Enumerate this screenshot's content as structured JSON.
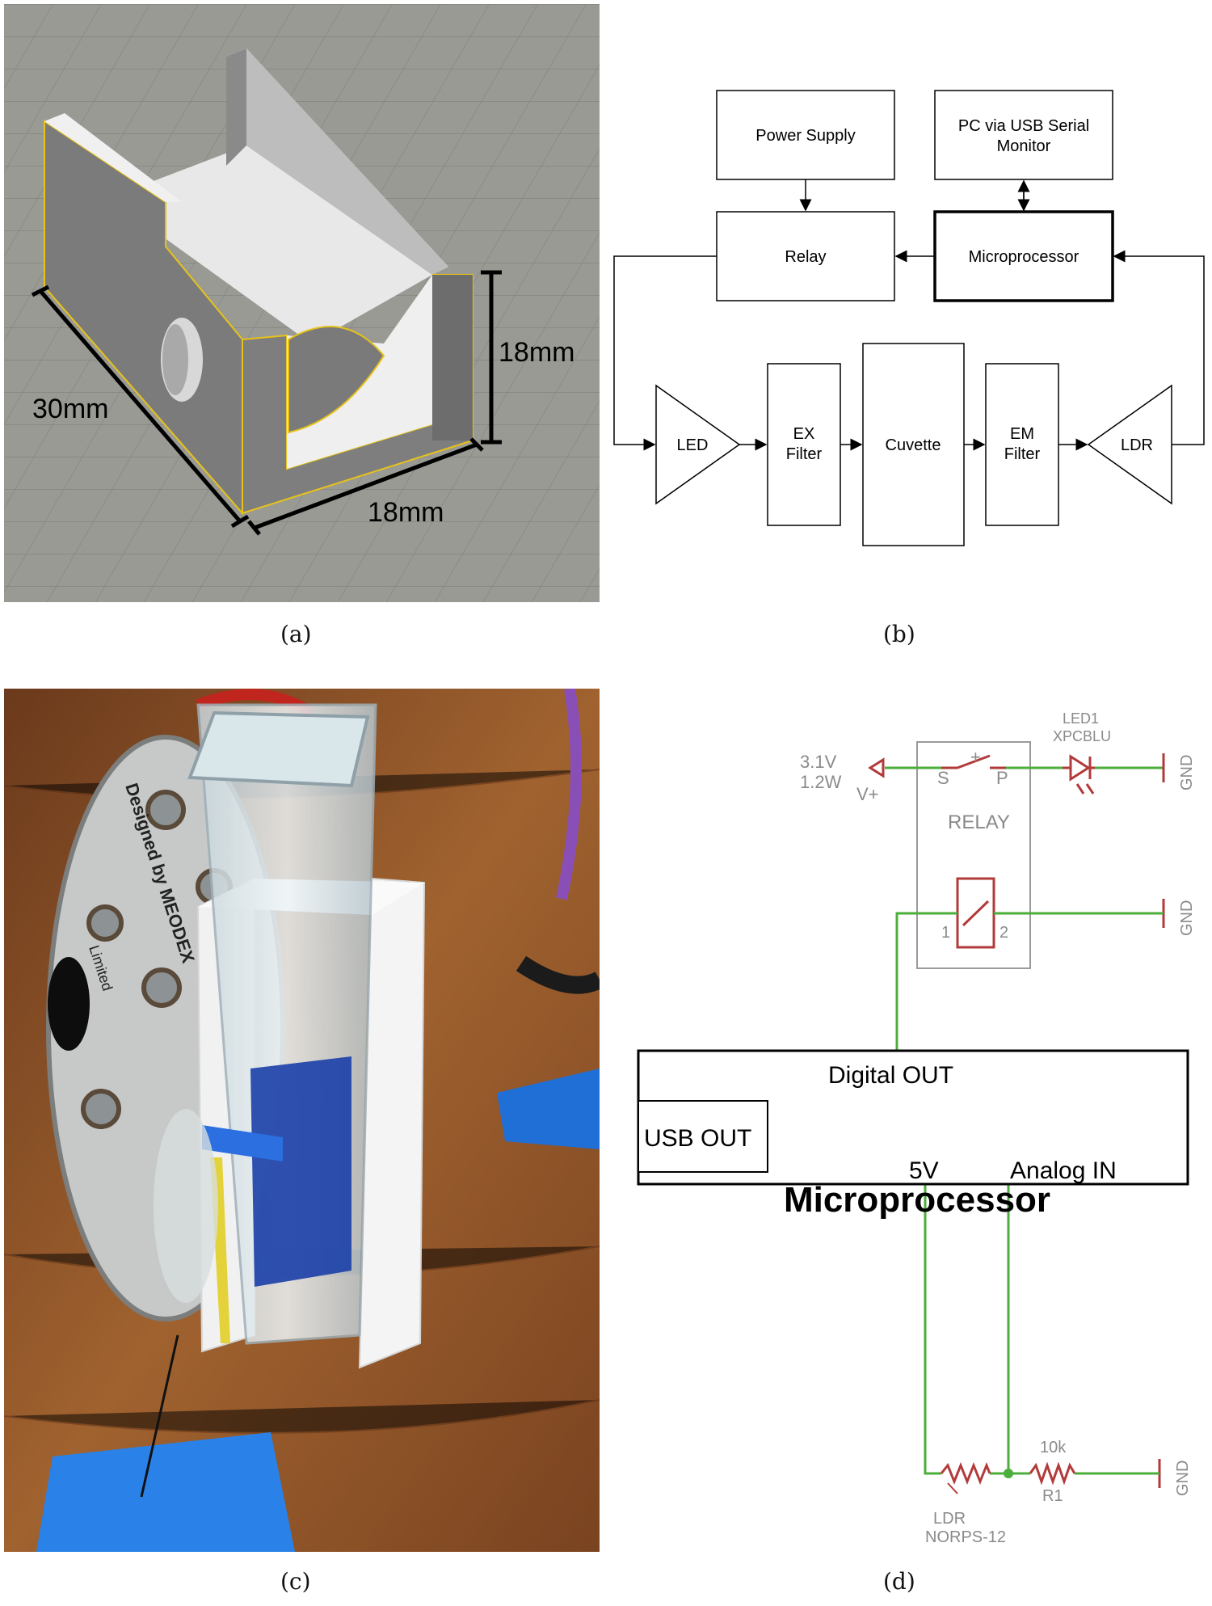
{
  "panel_a": {
    "caption": "(a)",
    "dim_length": "30mm",
    "dim_width": "18mm",
    "dim_height": "18mm"
  },
  "panel_b": {
    "caption": "(b)",
    "power_supply": "Power Supply",
    "pc_line1": "PC via USB Serial",
    "pc_line2": "Monitor",
    "relay": "Relay",
    "microprocessor": "Microprocessor",
    "led": "LED",
    "ex_line1": "EX",
    "ex_line2": "Filter",
    "cuvette": "Cuvette",
    "em_line1": "EM",
    "em_line2": "Filter",
    "ldr": "LDR"
  },
  "panel_c": {
    "caption": "(c)",
    "board_text_1": "Designed by MEODEX",
    "board_text_2": "Limited"
  },
  "panel_d": {
    "caption": "(d)",
    "supply_voltage": "3.1V",
    "supply_power": "1.2W",
    "vplus": "V+",
    "led_name": "LED1",
    "led_part": "XPCBLU",
    "relay_s": "S",
    "relay_plus": "+",
    "relay_p": "P",
    "relay_label": "RELAY",
    "coil_pin1": "1",
    "coil_pin2": "2",
    "gnd": "GND",
    "digital_out": "Digital OUT",
    "usb_out": "USB OUT",
    "microprocessor": "Microprocessor",
    "five_v": "5V",
    "analog_in": "Analog IN",
    "r1_value": "10k",
    "r1_name": "R1",
    "ldr_name": "LDR",
    "ldr_part": "NORPS-12"
  },
  "colors": {
    "wire_green": "#4cae3b",
    "component_red": "#b23a3a",
    "label_gray": "#8a8a8a",
    "outline_yellow": "#e6c21a"
  }
}
